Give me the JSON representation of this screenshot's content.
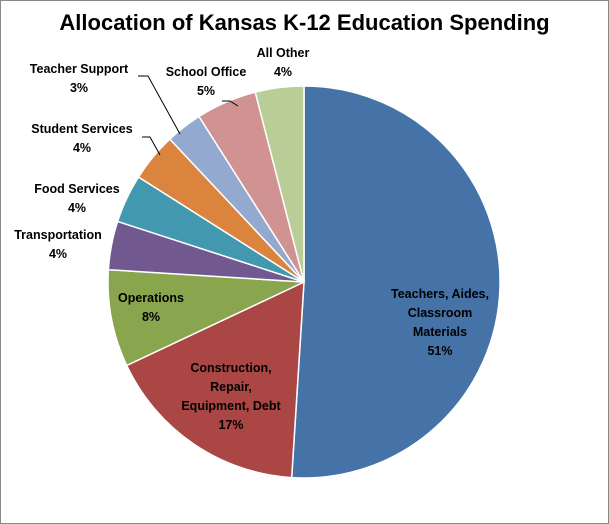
{
  "chart_data": {
    "type": "pie",
    "title": "Allocation of Kansas K-12 Education Spending",
    "slices": [
      {
        "label": "Teachers, Aides, Classroom Materials",
        "value": 51,
        "value_label": "51%",
        "color": "#4572A7"
      },
      {
        "label": "Construction, Repair, Equipment, Debt",
        "value": 17,
        "value_label": "17%",
        "color": "#AA4643"
      },
      {
        "label": "Operations",
        "value": 8,
        "value_label": "8%",
        "color": "#89A54E"
      },
      {
        "label": "Transportation",
        "value": 4,
        "value_label": "4%",
        "color": "#71588F"
      },
      {
        "label": "Food Services",
        "value": 4,
        "value_label": "4%",
        "color": "#4198AF"
      },
      {
        "label": "Student Services",
        "value": 4,
        "value_label": "4%",
        "color": "#DB843D"
      },
      {
        "label": "Teacher Support",
        "value": 3,
        "value_label": "3%",
        "color": "#93A9CF"
      },
      {
        "label": "School Office",
        "value": 5,
        "value_label": "5%",
        "color": "#D19392"
      },
      {
        "label": "All Other",
        "value": 4,
        "value_label": "4%",
        "color": "#B9CD96"
      }
    ],
    "start_angle_deg": 0,
    "direction": "clockwise",
    "legend": "none"
  }
}
